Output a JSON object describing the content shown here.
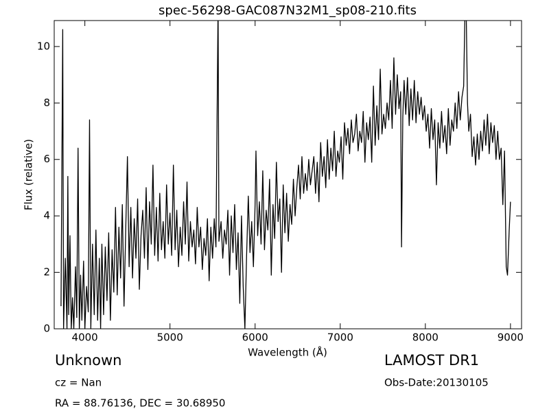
{
  "chart_data": {
    "type": "line",
    "title": "spec-56298-GAC087N32M1_sp08-210.fits",
    "xlabel": "Wavelength (Å)",
    "ylabel": "Flux (relative)",
    "annotations": [
      "Unknown",
      "cz = Nan",
      "RA = 88.76136, DEC = 30.68950",
      "LAMOST DR1",
      "Obs-Date:20130105"
    ],
    "color": "#000000",
    "xlim": [
      3640,
      9130
    ],
    "ylim": [
      0,
      10.92
    ],
    "xticks": [
      4000,
      5000,
      6000,
      7000,
      8000,
      9000
    ],
    "yticks": [
      0,
      2,
      4,
      6,
      8,
      10
    ],
    "grid": false,
    "x": [
      3720,
      3740,
      3750,
      3770,
      3790,
      3800,
      3810,
      3825,
      3840,
      3855,
      3870,
      3890,
      3905,
      3920,
      3935,
      3950,
      3965,
      3985,
      4000,
      4020,
      4040,
      4055,
      4070,
      4090,
      4110,
      4130,
      4150,
      4170,
      4185,
      4200,
      4220,
      4240,
      4260,
      4280,
      4300,
      4320,
      4340,
      4360,
      4380,
      4400,
      4420,
      4440,
      4460,
      4480,
      4500,
      4520,
      4540,
      4560,
      4580,
      4600,
      4620,
      4640,
      4660,
      4680,
      4700,
      4720,
      4740,
      4760,
      4780,
      4800,
      4820,
      4840,
      4860,
      4880,
      4900,
      4920,
      4940,
      4960,
      4980,
      5000,
      5020,
      5040,
      5060,
      5080,
      5100,
      5120,
      5140,
      5160,
      5180,
      5200,
      5220,
      5240,
      5260,
      5280,
      5300,
      5320,
      5340,
      5360,
      5380,
      5400,
      5420,
      5440,
      5460,
      5480,
      5500,
      5520,
      5540,
      5565,
      5575,
      5600,
      5620,
      5640,
      5660,
      5680,
      5700,
      5720,
      5740,
      5760,
      5780,
      5800,
      5820,
      5840,
      5860,
      5880,
      5900,
      5920,
      5940,
      5960,
      5980,
      6000,
      6010,
      6030,
      6050,
      6070,
      6090,
      6110,
      6130,
      6150,
      6170,
      6190,
      6210,
      6230,
      6250,
      6270,
      6290,
      6310,
      6330,
      6350,
      6370,
      6390,
      6410,
      6430,
      6450,
      6470,
      6490,
      6510,
      6530,
      6550,
      6570,
      6590,
      6610,
      6630,
      6650,
      6670,
      6690,
      6710,
      6730,
      6750,
      6770,
      6790,
      6810,
      6830,
      6850,
      6870,
      6890,
      6910,
      6930,
      6950,
      6970,
      6990,
      7010,
      7030,
      7050,
      7070,
      7090,
      7110,
      7130,
      7150,
      7170,
      7190,
      7210,
      7230,
      7250,
      7270,
      7290,
      7310,
      7330,
      7350,
      7370,
      7390,
      7410,
      7430,
      7450,
      7470,
      7490,
      7510,
      7530,
      7550,
      7570,
      7590,
      7610,
      7630,
      7650,
      7670,
      7690,
      7710,
      7720,
      7735,
      7750,
      7770,
      7790,
      7810,
      7830,
      7850,
      7870,
      7890,
      7910,
      7930,
      7950,
      7970,
      7990,
      8010,
      8030,
      8050,
      8070,
      8090,
      8110,
      8130,
      8150,
      8170,
      8190,
      8210,
      8230,
      8250,
      8270,
      8290,
      8310,
      8330,
      8350,
      8370,
      8390,
      8410,
      8430,
      8450,
      8465,
      8480,
      8495,
      8510,
      8530,
      8550,
      8570,
      8590,
      8610,
      8630,
      8650,
      8670,
      8690,
      8710,
      8730,
      8750,
      8770,
      8790,
      8810,
      8830,
      8850,
      8870,
      8890,
      8910,
      8930,
      8950,
      8965,
      8985,
      9000
    ],
    "values": [
      0.8,
      10.6,
      0,
      2.5,
      0,
      5.4,
      0.5,
      3.3,
      0,
      1.1,
      0,
      2.2,
      0.4,
      6.4,
      0,
      1.9,
      0.3,
      2.4,
      0,
      1.5,
      0.6,
      7.4,
      0,
      3.0,
      0.5,
      3.5,
      0.3,
      2.5,
      0,
      3.0,
      0.5,
      2.9,
      1.0,
      3.4,
      0.3,
      2.8,
      1.3,
      4.3,
      1.2,
      3.6,
      1.8,
      4.4,
      0.8,
      3.5,
      6.1,
      2.2,
      4.3,
      1.8,
      3.9,
      2.5,
      4.6,
      1.4,
      3.3,
      4.2,
      2.5,
      5.0,
      2.1,
      4.5,
      3.0,
      5.8,
      2.6,
      4.3,
      2.4,
      4.8,
      2.8,
      3.8,
      2.5,
      5.1,
      3.0,
      4.1,
      2.6,
      5.8,
      2.8,
      4.2,
      2.2,
      3.6,
      2.6,
      4.5,
      3.0,
      5.2,
      2.4,
      3.8,
      2.9,
      3.5,
      2.3,
      4.3,
      2.9,
      3.6,
      2.1,
      3.2,
      2.6,
      3.9,
      1.7,
      3.6,
      2.5,
      3.9,
      2.9,
      11.5,
      3.1,
      3.8,
      2.5,
      3.5,
      3.0,
      4.2,
      1.9,
      4.0,
      2.7,
      4.4,
      2.1,
      3.4,
      0.9,
      4.0,
      1.5,
      0,
      2.6,
      4.7,
      2.7,
      3.8,
      2.2,
      4.4,
      6.3,
      3.3,
      4.5,
      3.0,
      5.6,
      2.8,
      4.2,
      3.5,
      5.3,
      1.9,
      4.4,
      3.2,
      5.9,
      3.8,
      4.6,
      2.0,
      5.1,
      3.4,
      4.8,
      3.1,
      4.4,
      3.7,
      5.3,
      4.0,
      5.0,
      5.8,
      4.6,
      6.1,
      4.8,
      5.5,
      4.9,
      6.0,
      5.1,
      5.6,
      6.1,
      4.8,
      5.9,
      4.5,
      6.6,
      5.4,
      6.1,
      5.0,
      6.7,
      5.3,
      6.4,
      5.6,
      7.0,
      5.4,
      6.3,
      5.9,
      6.8,
      5.3,
      7.3,
      6.5,
      7.1,
      6.2,
      7.4,
      6.6,
      6.9,
      7.6,
      6.3,
      7.0,
      6.6,
      7.7,
      5.9,
      7.3,
      6.7,
      7.5,
      5.9,
      8.6,
      6.5,
      7.9,
      6.7,
      9.2,
      6.9,
      7.6,
      7.1,
      8.0,
      7.4,
      8.8,
      7.1,
      9.6,
      7.6,
      9.0,
      7.8,
      8.4,
      2.9,
      7.5,
      8.8,
      7.6,
      8.9,
      7.2,
      8.5,
      7.4,
      8.8,
      7.3,
      8.4,
      7.6,
      8.2,
      7.4,
      7.9,
      7.0,
      7.6,
      6.4,
      7.8,
      6.7,
      7.4,
      5.1,
      7.3,
      6.4,
      7.7,
      6.6,
      7.2,
      6.2,
      7.8,
      6.5,
      7.4,
      7.0,
      8.0,
      7.1,
      8.4,
      7.4,
      8.2,
      8.6,
      11.2,
      11.2,
      8.0,
      7.0,
      7.6,
      6.1,
      6.8,
      5.8,
      6.9,
      6.0,
      7.0,
      6.3,
      7.4,
      6.5,
      7.6,
      6.2,
      7.3,
      6.6,
      7.2,
      6.0,
      7.0,
      6.0,
      6.4,
      4.4,
      6.3,
      2.2,
      1.9,
      3.5,
      4.5
    ]
  }
}
